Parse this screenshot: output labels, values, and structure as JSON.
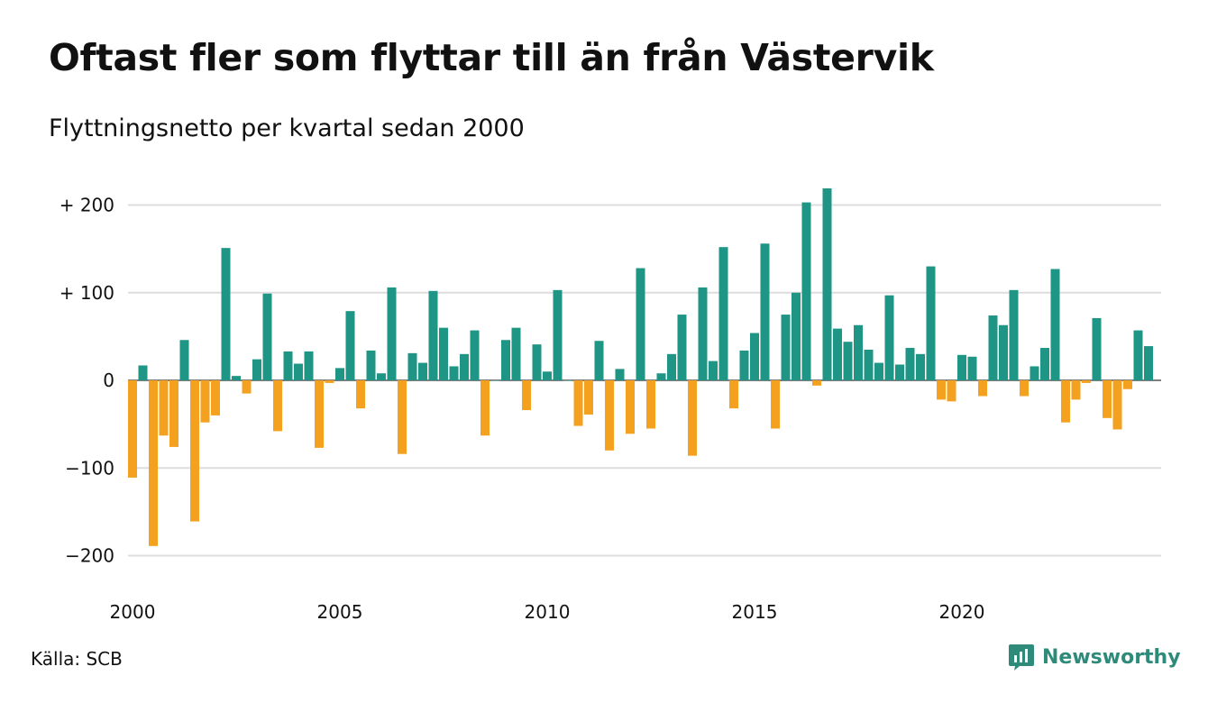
{
  "title": "Oftast fler som flyttar till än från Västervik",
  "subtitle": "Flyttningsnetto per kvartal sedan 2000",
  "source": "Källa: SCB",
  "brand": {
    "name": "Newsworthy"
  },
  "colors": {
    "positive": "#1e9585",
    "negative": "#f4a11f",
    "grid": "#dddddd",
    "text": "#111111",
    "brand": "#2e8b7a"
  },
  "chart_data": {
    "type": "bar",
    "title": "Oftast fler som flyttar till än från Västervik",
    "subtitle": "Flyttningsnetto per kvartal sedan 2000",
    "ylim": [
      -220,
      220
    ],
    "yticks": [
      {
        "value": 200,
        "label": "+ 200"
      },
      {
        "value": 100,
        "label": "+ 100"
      },
      {
        "value": 0,
        "label": "0"
      },
      {
        "value": -100,
        "label": "−100"
      },
      {
        "value": -200,
        "label": "−200"
      }
    ],
    "xticks": [
      {
        "year": 2000,
        "label": "2000"
      },
      {
        "year": 2005,
        "label": "2005"
      },
      {
        "year": 2010,
        "label": "2010"
      },
      {
        "year": 2015,
        "label": "2015"
      },
      {
        "year": 2020,
        "label": "2020"
      }
    ],
    "grid": true,
    "legend": "none",
    "start_period": "2000 Q1",
    "values": [
      -111,
      17,
      -189,
      -63,
      -76,
      46,
      -161,
      -48,
      -40,
      151,
      5,
      -15,
      24,
      99,
      -58,
      33,
      19,
      33,
      -77,
      -3,
      14,
      79,
      -32,
      34,
      8,
      106,
      -84,
      31,
      20,
      102,
      60,
      16,
      30,
      57,
      -63,
      0,
      46,
      60,
      -34,
      41,
      10,
      103,
      0,
      -52,
      -39,
      45,
      -80,
      13,
      -61,
      128,
      -55,
      8,
      30,
      75,
      -86,
      106,
      22,
      152,
      -32,
      34,
      54,
      156,
      -55,
      75,
      100,
      203,
      -6,
      219,
      59,
      44,
      63,
      35,
      20,
      97,
      18,
      37,
      30,
      130,
      -22,
      -24,
      29,
      27,
      -18,
      74,
      63,
      103,
      -18,
      16,
      37,
      127,
      -48,
      -22,
      -3,
      71,
      -43,
      -56,
      -10,
      57,
      39
    ]
  }
}
